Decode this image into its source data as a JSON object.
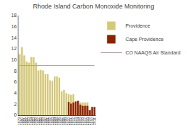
{
  "chart_data": {
    "type": "bar",
    "title": "Rhode Island Carbon Monoxide Monitoring",
    "categories": [
      "1979",
      "1980",
      "1981",
      "1982",
      "1983",
      "1984",
      "1985",
      "1986",
      "1987",
      "1988",
      "1989",
      "1990",
      "1991",
      "1992",
      "1993",
      "1994",
      "1995",
      "1996",
      "1997",
      "1998",
      "1999",
      "2000",
      "2001",
      "2002",
      "2003",
      "2004",
      "2005",
      "2006",
      "2007",
      "2008",
      "2009",
      "2010",
      "2011"
    ],
    "series": [
      {
        "name": "Providence",
        "color": "#D4C87A",
        "values": [
          11.0,
          12.3,
          10.8,
          9.7,
          9.5,
          10.5,
          10.5,
          9.5,
          8.1,
          8.2,
          8.1,
          7.4,
          7.4,
          6.3,
          6.2,
          7.0,
          7.0,
          6.8,
          4.3,
          4.6,
          4.0,
          3.8,
          3.7,
          3.8,
          2.2,
          2.3,
          2.3,
          2.3,
          2.3,
          2.3,
          null,
          null,
          null
        ]
      },
      {
        "name": "Cape Providence",
        "color": "#8B2200",
        "values": [
          null,
          null,
          null,
          null,
          null,
          null,
          null,
          null,
          null,
          null,
          null,
          null,
          null,
          null,
          null,
          null,
          null,
          null,
          null,
          null,
          null,
          2.4,
          2.1,
          2.3,
          2.5,
          2.6,
          1.9,
          1.7,
          1.7,
          1.7,
          0.9,
          1.5,
          1.5
        ]
      },
      {
        "name": "CO NAAQS Air Standard",
        "type": "line",
        "color": "#B0A0A0",
        "values": [
          9.0,
          9.0,
          9.0,
          9.0,
          9.0,
          9.0,
          9.0,
          9.0,
          9.0,
          9.0,
          9.0,
          9.0,
          9.0,
          9.0,
          9.0,
          9.0,
          9.0,
          9.0,
          9.0,
          9.0,
          9.0,
          9.0,
          9.0,
          9.0,
          9.0,
          9.0,
          9.0,
          9.0,
          9.0,
          9.0,
          9.0,
          9.0,
          9.0
        ]
      }
    ],
    "ylim": [
      0,
      18
    ],
    "yticks": [
      0,
      2,
      4,
      6,
      8,
      10,
      12,
      14,
      16,
      18
    ],
    "grid": false,
    "legend": "right"
  }
}
